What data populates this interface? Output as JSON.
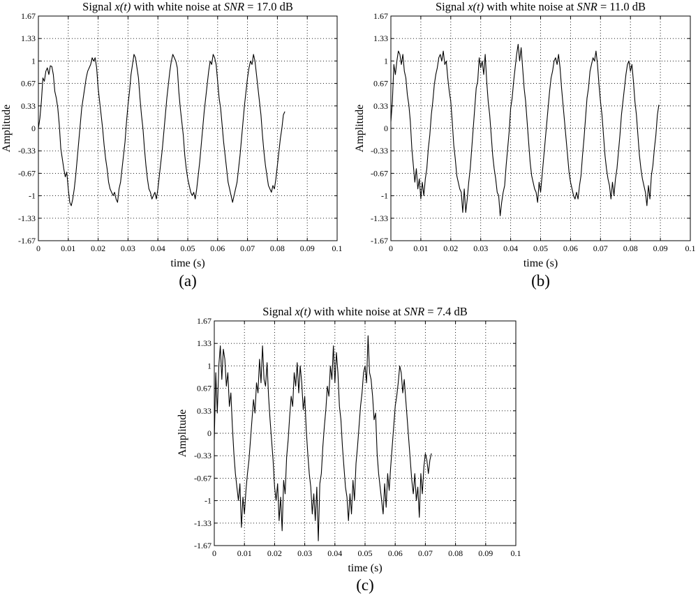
{
  "chart_data": [
    {
      "type": "line",
      "panel_label": "(a)",
      "title": {
        "pre": "Signal ",
        "fn": "x(t)",
        "mid": " with white noise at ",
        "snr_symbol": "SNR",
        "post": " = 17.0 dB"
      },
      "xlabel": "time (s)",
      "ylabel": "Amplitude",
      "xlim": [
        0,
        0.1
      ],
      "ylim": [
        -1.67,
        1.67
      ],
      "xticks": [
        "0",
        "0.01",
        "0.02",
        "0.03",
        "0.04",
        "0.05",
        "0.06",
        "0.07",
        "0.08",
        "0.09",
        "0.1"
      ],
      "yticks": [
        "1.67",
        "1.33",
        "1",
        "0.67",
        "0.33",
        "0",
        "-0.33",
        "-0.67",
        "-1",
        "-1.33",
        "-1.67"
      ],
      "grid": true,
      "series": [
        {
          "x_start": 0,
          "x_step": 0.0005,
          "y": [
            0.0,
            0.15,
            0.4,
            0.75,
            0.7,
            0.85,
            0.9,
            0.8,
            0.93,
            0.92,
            0.8,
            0.55,
            0.45,
            0.3,
            0.05,
            -0.3,
            -0.45,
            -0.6,
            -0.72,
            -0.65,
            -0.9,
            -1.1,
            -1.15,
            -1.05,
            -0.9,
            -0.7,
            -0.45,
            -0.2,
            0.05,
            0.3,
            0.45,
            0.6,
            0.75,
            0.85,
            0.9,
            0.95,
            1.05,
            1.0,
            1.05,
            0.9,
            0.6,
            0.4,
            0.2,
            0.0,
            -0.25,
            -0.45,
            -0.6,
            -0.8,
            -0.9,
            -0.95,
            -1.0,
            -0.95,
            -1.05,
            -1.1,
            -0.9,
            -0.8,
            -0.6,
            -0.4,
            -0.2,
            0.1,
            0.35,
            0.55,
            0.8,
            0.95,
            1.1,
            1.05,
            0.9,
            0.75,
            0.45,
            0.2,
            0.0,
            -0.3,
            -0.55,
            -0.75,
            -0.9,
            -0.95,
            -1.05,
            -1.0,
            -0.95,
            -1.05,
            -0.9,
            -0.7,
            -0.5,
            -0.3,
            -0.05,
            0.2,
            0.45,
            0.65,
            0.85,
            1.0,
            1.1,
            1.05,
            1.0,
            0.9,
            0.55,
            0.3,
            0.1,
            -0.1,
            -0.4,
            -0.6,
            -0.75,
            -0.85,
            -0.95,
            -1.0,
            -0.95,
            -1.05,
            -0.9,
            -0.7,
            -0.5,
            -0.25,
            0.0,
            0.25,
            0.45,
            0.65,
            0.85,
            1.0,
            0.95,
            1.1,
            1.05,
            0.95,
            0.7,
            0.45,
            0.3,
            0.05,
            -0.2,
            -0.4,
            -0.6,
            -0.8,
            -0.9,
            -1.0,
            -1.1,
            -1.0,
            -0.9,
            -0.8,
            -0.6,
            -0.4,
            -0.15,
            0.1,
            0.35,
            0.55,
            0.75,
            0.9,
            1.0,
            0.95,
            1.1,
            1.0,
            0.8,
            0.6,
            0.4,
            0.2,
            -0.1,
            -0.35,
            -0.55,
            -0.7,
            -0.85,
            -0.9,
            -0.95,
            -0.85,
            -0.9,
            -0.75,
            -0.55,
            -0.35,
            -0.15,
            0.0,
            0.2,
            0.25
          ]
        }
      ]
    },
    {
      "type": "line",
      "panel_label": "(b)",
      "title": {
        "pre": "Signal ",
        "fn": "x(t)",
        "mid": " with white noise at ",
        "snr_symbol": "SNR",
        "post": " = 11.0 dB"
      },
      "xlabel": "time (s)",
      "ylabel": "Amplitude",
      "xlim": [
        0,
        0.1
      ],
      "ylim": [
        -1.67,
        1.67
      ],
      "xticks": [
        "0",
        "0.01",
        "0.02",
        "0.03",
        "0.04",
        "0.05",
        "0.06",
        "0.07",
        "0.08",
        "0.09",
        "0.1"
      ],
      "yticks": [
        "1.67",
        "1.33",
        "1",
        "0.67",
        "0.33",
        "0",
        "-0.33",
        "-0.67",
        "-1",
        "-1.33",
        "-1.67"
      ],
      "grid": true,
      "series": [
        {
          "x_start": 0,
          "x_step": 0.0005,
          "y": [
            0.1,
            0.4,
            0.95,
            0.8,
            1.0,
            1.15,
            1.1,
            0.95,
            1.1,
            0.85,
            0.75,
            0.5,
            0.35,
            0.1,
            -0.3,
            -0.55,
            -0.8,
            -0.6,
            -0.9,
            -0.75,
            -1.05,
            -0.8,
            -1.0,
            -0.75,
            -0.6,
            -0.3,
            -0.1,
            0.2,
            0.4,
            0.65,
            0.8,
            0.9,
            1.05,
            1.1,
            1.0,
            1.15,
            0.95,
            1.0,
            0.75,
            0.55,
            0.4,
            0.1,
            -0.25,
            -0.45,
            -0.7,
            -0.8,
            -0.9,
            -0.95,
            -1.25,
            -0.9,
            -1.25,
            -1.05,
            -0.8,
            -0.6,
            -0.3,
            0.0,
            0.3,
            0.6,
            0.7,
            1.05,
            0.9,
            1.0,
            0.8,
            1.1,
            0.7,
            0.4,
            0.2,
            -0.1,
            -0.4,
            -0.6,
            -0.75,
            -0.95,
            -1.0,
            -1.3,
            -1.1,
            -0.95,
            -0.85,
            -0.55,
            -0.3,
            -0.05,
            0.3,
            0.45,
            0.7,
            0.9,
            1.1,
            1.25,
            1.0,
            1.2,
            0.9,
            0.6,
            0.4,
            0.1,
            -0.2,
            -0.5,
            -0.7,
            -0.8,
            -0.9,
            -0.95,
            -1.1,
            -0.8,
            -0.95,
            -0.7,
            -0.45,
            -0.2,
            0.05,
            0.3,
            0.55,
            0.75,
            0.85,
            1.0,
            1.05,
            0.95,
            1.1,
            0.9,
            0.6,
            0.35,
            0.1,
            -0.15,
            -0.4,
            -0.65,
            -0.8,
            -0.9,
            -1.0,
            -1.05,
            -0.95,
            -1.05,
            -0.85,
            -0.7,
            -0.4,
            -0.15,
            0.15,
            0.45,
            0.6,
            0.85,
            0.95,
            1.05,
            1.0,
            1.15,
            0.95,
            0.65,
            0.4,
            0.2,
            -0.1,
            -0.4,
            -0.6,
            -0.75,
            -0.85,
            -1.05,
            -0.8,
            -1.0,
            -0.75,
            -0.6,
            -0.35,
            -0.1,
            0.2,
            0.4,
            0.6,
            0.8,
            0.95,
            1.0,
            0.85,
            0.95,
            0.7,
            0.4,
            0.2,
            -0.1,
            -0.4,
            -0.6,
            -0.75,
            -0.85,
            -0.95,
            -1.15,
            -0.85,
            -1.05,
            -0.7,
            -0.55,
            -0.3,
            -0.1,
            0.2,
            0.35
          ]
        }
      ]
    },
    {
      "type": "line",
      "panel_label": "(c)",
      "title": {
        "pre": "Signal ",
        "fn": "x(t)",
        "mid": " with white noise at ",
        "snr_symbol": "SNR",
        "post": " = 7.4 dB"
      },
      "xlabel": "time (s)",
      "ylabel": "Amplitude",
      "xlim": [
        0,
        0.1
      ],
      "ylim": [
        -1.67,
        1.67
      ],
      "xticks": [
        "0",
        "0.01",
        "0.02",
        "0.03",
        "0.04",
        "0.05",
        "0.06",
        "0.07",
        "0.08",
        "0.09",
        "0.1"
      ],
      "yticks": [
        "1.67",
        "1.33",
        "1",
        "0.67",
        "0.33",
        "0",
        "-0.33",
        "-0.67",
        "-1",
        "-1.33",
        "-1.67"
      ],
      "grid": true,
      "series": [
        {
          "x_start": 0,
          "x_step": 0.0005,
          "y": [
            -0.1,
            0.9,
            0.3,
            1.0,
            1.3,
            0.8,
            1.25,
            1.1,
            0.7,
            0.9,
            0.4,
            0.6,
            0.1,
            -0.3,
            -0.6,
            -0.8,
            -1.0,
            -0.75,
            -1.4,
            -0.95,
            -1.2,
            -0.85,
            -0.6,
            -0.4,
            -0.1,
            0.2,
            0.5,
            0.3,
            0.75,
            0.6,
            1.1,
            0.75,
            1.3,
            0.8,
            0.7,
            1.05,
            0.55,
            0.2,
            -0.1,
            -0.4,
            -0.8,
            -1.0,
            -0.75,
            -1.3,
            -0.95,
            -1.45,
            -0.7,
            -0.9,
            -0.35,
            -0.1,
            0.25,
            0.55,
            0.4,
            0.9,
            0.7,
            1.05,
            0.6,
            1.0,
            0.75,
            0.35,
            0.55,
            0.05,
            -0.3,
            -0.6,
            -0.8,
            -1.2,
            -0.9,
            -1.3,
            -0.8,
            -1.6,
            -0.75,
            -0.6,
            -0.2,
            0.1,
            0.35,
            0.7,
            0.55,
            1.0,
            0.8,
            1.3,
            0.75,
            1.2,
            0.9,
            0.4,
            0.2,
            -0.2,
            -0.5,
            -0.8,
            -0.95,
            -1.3,
            -0.9,
            -1.2,
            -0.7,
            -1.0,
            -0.45,
            -0.2,
            0.1,
            0.4,
            0.6,
            0.9,
            1.0,
            0.75,
            1.45,
            0.9,
            0.8,
            0.55,
            0.2,
            0.3,
            -0.3,
            -0.6,
            -0.8,
            -1.0,
            -1.2,
            -0.75,
            -1.1,
            -0.6,
            -0.85,
            -0.5,
            -0.2,
            0.1,
            0.4,
            0.55,
            0.75,
            1.0,
            0.9,
            0.6,
            0.8,
            0.5,
            0.2,
            -0.1,
            -0.4,
            -0.7,
            -0.9,
            -0.6,
            -1.0,
            -0.8,
            -1.25,
            -0.6,
            -0.9,
            -0.5,
            -0.3,
            -0.4,
            -0.6,
            -0.4,
            -0.3
          ]
        }
      ]
    }
  ]
}
